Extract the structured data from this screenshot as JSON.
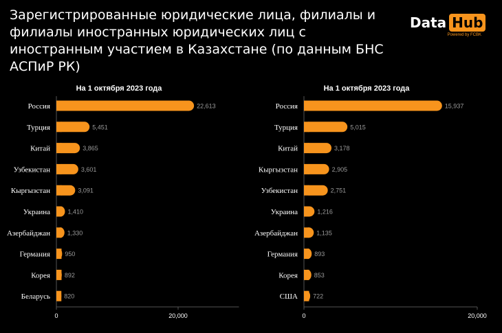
{
  "title": "Зарегистрированные юридические лица, филиалы и филиалы иностранных юридических лиц с иностранным участием в Казахстане (по данным БНС АСПиР РК)",
  "logo": {
    "part1": "Data",
    "part2": "Hub",
    "tagline": "Powered by FCBK"
  },
  "colors": {
    "bar": "#f7941d",
    "background": "#000000",
    "axis": "#555555"
  },
  "chart_data": [
    {
      "type": "bar",
      "orientation": "horizontal",
      "title": "На 1 октября 2023 года",
      "categories": [
        "Россия",
        "Турция",
        "Китай",
        "Узбекистан",
        "Кыргызстан",
        "Украина",
        "Азербайджан",
        "Германия",
        "Корея",
        "Беларусь"
      ],
      "values": [
        22613,
        5451,
        3865,
        3601,
        3091,
        1410,
        1330,
        950,
        892,
        820
      ],
      "value_labels": [
        "22,613",
        "5,451",
        "3,865",
        "3,601",
        "3,091",
        "1,410",
        "1,330",
        "950",
        "892",
        "820"
      ],
      "xlim": [
        0,
        30000
      ],
      "ticks": [
        0,
        20000
      ],
      "tick_labels": [
        "0",
        "20,000"
      ]
    },
    {
      "type": "bar",
      "orientation": "horizontal",
      "title": "На 1 октября 2023 года",
      "categories": [
        "Россия",
        "Турция",
        "Китай",
        "Кыргызстан",
        "Узбекистан",
        "Украина",
        "Азербайджан",
        "Германия",
        "Корея",
        "США"
      ],
      "values": [
        15937,
        5015,
        3178,
        2905,
        2751,
        1216,
        1135,
        893,
        853,
        722
      ],
      "value_labels": [
        "15,937",
        "5,015",
        "3,178",
        "2,905",
        "2,751",
        "1,216",
        "1,135",
        "893",
        "853",
        "722"
      ],
      "xlim": [
        0,
        20000
      ],
      "ticks": [
        0,
        20000
      ],
      "tick_labels": [
        "0",
        "20,000"
      ]
    }
  ]
}
